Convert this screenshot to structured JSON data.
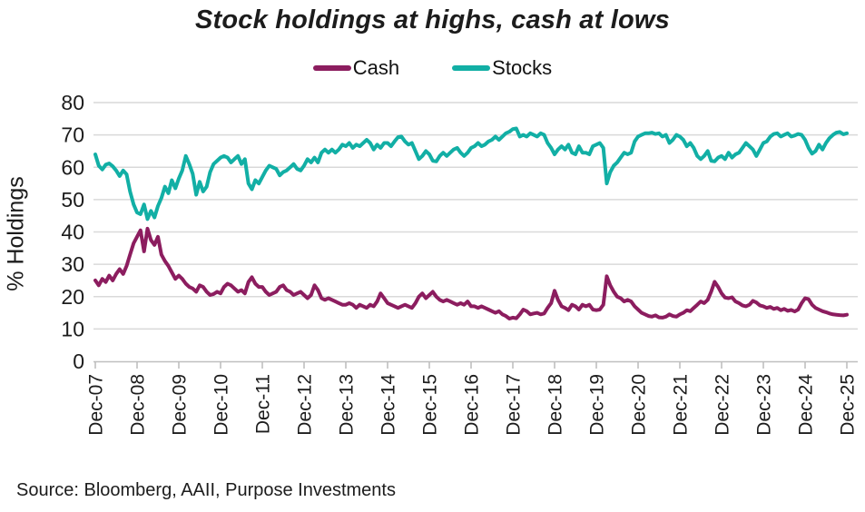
{
  "title": "Stock holdings at highs, cash at lows",
  "source": "Source: Bloomberg, AAII, Purpose Investments",
  "colors": {
    "cash": "#8C1D5F",
    "stocks": "#12AFA5",
    "grid": "#D9D9D9",
    "axis": "#BFBFBF",
    "text": "#1C1C1C"
  },
  "legend": [
    {
      "label": "Cash",
      "color": "#8C1D5F"
    },
    {
      "label": "Stocks",
      "color": "#12AFA5"
    }
  ],
  "y_axis": {
    "label": "% Holdings",
    "ticks": [
      0,
      10,
      20,
      30,
      40,
      50,
      60,
      70,
      80
    ]
  },
  "x_axis": {
    "ticks": [
      "Dec-07",
      "Dec-08",
      "Dec-09",
      "Dec-10",
      "Dec-11",
      "Dec-12",
      "Dec-13",
      "Dec-14",
      "Dec-15",
      "Dec-16",
      "Dec-17",
      "Dec-18",
      "Dec-19",
      "Dec-20",
      "Dec-21",
      "Dec-22",
      "Dec-23",
      "Dec-24",
      "Dec-25"
    ]
  },
  "chart_data": {
    "type": "line",
    "title": "Stock holdings at highs, cash at lows",
    "xlabel": "",
    "ylabel": "% Holdings",
    "ylim": [
      0,
      80
    ],
    "grid": true,
    "legend_position": "top",
    "x_start": "Dec-07",
    "x_end": "Dec-25",
    "frequency": "monthly",
    "tick_labels": [
      "Dec-07",
      "Dec-08",
      "Dec-09",
      "Dec-10",
      "Dec-11",
      "Dec-12",
      "Dec-13",
      "Dec-14",
      "Dec-15",
      "Dec-16",
      "Dec-17",
      "Dec-18",
      "Dec-19",
      "Dec-20",
      "Dec-21",
      "Dec-22",
      "Dec-23",
      "Dec-24",
      "Dec-25"
    ],
    "series": [
      {
        "name": "Cash",
        "color": "#8C1D5F",
        "values": [
          25.0,
          23.5,
          25.5,
          24.5,
          26.5,
          25.0,
          27.0,
          28.5,
          27.0,
          29.5,
          33.0,
          36.5,
          38.5,
          40.5,
          34.0,
          41.0,
          37.5,
          36.0,
          38.5,
          33.0,
          31.0,
          29.5,
          27.5,
          25.5,
          26.5,
          25.5,
          24.0,
          23.0,
          22.5,
          21.5,
          23.5,
          23.0,
          21.5,
          20.5,
          20.8,
          21.5,
          21.0,
          23.0,
          24.0,
          23.5,
          22.5,
          21.5,
          22.0,
          21.0,
          24.5,
          26.0,
          24.0,
          23.0,
          23.0,
          21.5,
          20.5,
          21.0,
          21.5,
          23.0,
          23.5,
          22.0,
          21.5,
          20.5,
          21.0,
          21.5,
          20.5,
          19.5,
          20.5,
          23.5,
          22.0,
          19.5,
          19.0,
          19.5,
          19.0,
          18.5,
          18.0,
          17.5,
          17.5,
          18.0,
          17.5,
          16.5,
          17.5,
          17.0,
          16.5,
          17.5,
          17.0,
          18.5,
          21.0,
          19.5,
          18.0,
          17.5,
          17.0,
          16.5,
          17.0,
          17.5,
          17.0,
          16.5,
          18.0,
          20.0,
          21.0,
          19.5,
          20.5,
          21.5,
          20.0,
          19.0,
          18.5,
          19.0,
          18.5,
          18.0,
          17.5,
          18.0,
          17.5,
          18.5,
          17.0,
          17.0,
          16.5,
          17.0,
          16.5,
          16.0,
          15.5,
          15.0,
          15.5,
          14.5,
          14.0,
          13.2,
          13.5,
          13.3,
          14.5,
          16.0,
          15.5,
          14.5,
          14.8,
          15.0,
          14.5,
          14.8,
          16.5,
          18.0,
          21.8,
          19.0,
          17.0,
          16.5,
          15.8,
          17.5,
          17.0,
          16.0,
          17.5,
          17.0,
          17.5,
          16.0,
          15.8,
          16.0,
          17.5,
          26.3,
          23.5,
          21.5,
          20.0,
          19.5,
          18.5,
          19.0,
          18.5,
          17.0,
          16.0,
          15.0,
          14.5,
          14.0,
          13.8,
          14.2,
          13.6,
          13.5,
          13.8,
          14.5,
          14.0,
          13.8,
          14.5,
          15.0,
          15.8,
          15.5,
          16.5,
          17.5,
          18.5,
          18.0,
          19.0,
          21.5,
          24.6,
          23.0,
          21.0,
          19.7,
          19.5,
          19.8,
          18.5,
          18.0,
          17.3,
          17.0,
          17.5,
          18.7,
          18.2,
          17.3,
          17.0,
          16.5,
          16.8,
          16.2,
          16.5,
          15.8,
          16.2,
          15.6,
          15.9,
          15.4,
          16.0,
          18.0,
          19.5,
          19.2,
          17.5,
          16.5,
          16.0,
          15.5,
          15.2,
          14.8,
          14.5,
          14.4,
          14.3,
          14.2,
          14.4
        ]
      },
      {
        "name": "Stocks",
        "color": "#12AFA5",
        "values": [
          64.0,
          60.5,
          59.3,
          60.8,
          61.2,
          60.3,
          59.0,
          57.3,
          59.0,
          57.8,
          52.5,
          48.5,
          46.0,
          45.5,
          48.5,
          44.0,
          46.5,
          44.5,
          48.0,
          50.5,
          54.0,
          52.0,
          56.0,
          53.5,
          56.5,
          59.0,
          63.5,
          61.0,
          58.0,
          51.5,
          55.5,
          52.5,
          54.0,
          58.5,
          61.0,
          62.0,
          63.0,
          63.5,
          63.0,
          61.5,
          62.5,
          63.5,
          61.0,
          62.5,
          55.0,
          53.2,
          56.0,
          55.0,
          57.0,
          59.0,
          60.5,
          60.0,
          59.5,
          57.5,
          58.5,
          59.0,
          60.0,
          61.0,
          59.5,
          59.0,
          60.5,
          62.5,
          61.5,
          63.0,
          61.5,
          64.5,
          65.5,
          64.5,
          65.5,
          64.5,
          65.5,
          67.0,
          66.5,
          67.5,
          66.0,
          67.0,
          66.5,
          67.5,
          68.5,
          67.5,
          65.5,
          67.0,
          66.0,
          67.5,
          67.5,
          66.5,
          68.0,
          69.3,
          69.5,
          68.0,
          67.0,
          67.5,
          65.0,
          62.5,
          63.5,
          65.0,
          64.0,
          62.0,
          61.8,
          63.5,
          64.5,
          63.5,
          64.5,
          65.5,
          66.0,
          64.5,
          63.5,
          64.5,
          66.0,
          66.5,
          67.5,
          66.5,
          67.0,
          68.0,
          68.5,
          69.5,
          68.5,
          69.5,
          70.5,
          71.0,
          71.8,
          72.0,
          69.5,
          70.0,
          69.5,
          70.5,
          70.0,
          69.5,
          70.5,
          70.0,
          67.5,
          66.0,
          64.0,
          65.5,
          66.5,
          65.5,
          67.0,
          64.5,
          64.0,
          66.5,
          64.5,
          64.5,
          64.0,
          66.5,
          67.0,
          67.5,
          66.0,
          55.0,
          58.5,
          60.5,
          61.5,
          63.0,
          64.5,
          64.0,
          64.5,
          68.0,
          69.5,
          70.0,
          70.5,
          70.5,
          70.7,
          70.3,
          70.5,
          69.5,
          70.0,
          67.5,
          68.5,
          70.0,
          69.5,
          68.5,
          66.5,
          67.5,
          66.0,
          63.5,
          62.5,
          63.5,
          65.0,
          62.0,
          61.8,
          63.0,
          63.5,
          62.5,
          64.5,
          63.0,
          64.0,
          64.5,
          66.0,
          67.5,
          66.5,
          65.5,
          63.5,
          65.5,
          67.5,
          68.0,
          69.5,
          70.3,
          70.5,
          69.5,
          70.0,
          70.5,
          69.5,
          69.8,
          70.3,
          70.0,
          68.5,
          66.0,
          64.2,
          65.0,
          67.0,
          65.5,
          67.5,
          69.0,
          70.0,
          70.7,
          70.9,
          70.2,
          70.5
        ]
      }
    ]
  }
}
